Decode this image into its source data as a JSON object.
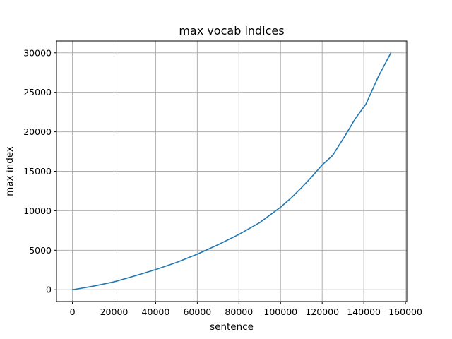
{
  "chart_data": {
    "type": "line",
    "title": "max vocab indices",
    "xlabel": "sentence",
    "ylabel": "max index",
    "xlim": [
      -7650,
      160650
    ],
    "ylim": [
      -1500,
      31500
    ],
    "xticks": [
      0,
      20000,
      40000,
      60000,
      80000,
      100000,
      120000,
      140000,
      160000
    ],
    "xtick_labels": [
      "0",
      "20000",
      "40000",
      "60000",
      "80000",
      "100000",
      "120000",
      "140000",
      "160000"
    ],
    "yticks": [
      0,
      5000,
      10000,
      15000,
      20000,
      25000,
      30000
    ],
    "ytick_labels": [
      "0",
      "5000",
      "10000",
      "15000",
      "20000",
      "25000",
      "30000"
    ],
    "grid": true,
    "series": [
      {
        "color": "#1f77b4",
        "x": [
          0,
          10000,
          20000,
          30000,
          40000,
          50000,
          60000,
          70000,
          80000,
          90000,
          100000,
          105000,
          110000,
          115000,
          120000,
          125000,
          131000,
          136000,
          141000,
          147000,
          153000
        ],
        "y": [
          0,
          450,
          1000,
          1750,
          2550,
          3450,
          4500,
          5700,
          7000,
          8500,
          10450,
          11600,
          12900,
          14300,
          15800,
          17000,
          19500,
          21700,
          23500,
          27000,
          30000
        ]
      }
    ]
  }
}
